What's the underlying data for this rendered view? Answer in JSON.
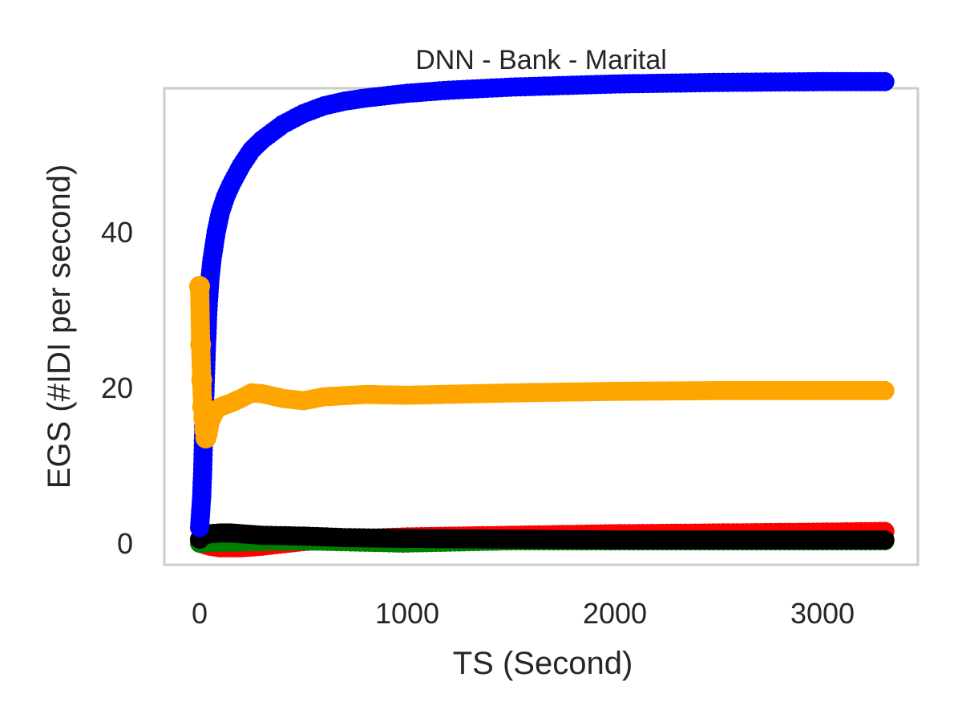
{
  "chart_data": {
    "type": "line",
    "title": "DNN - Bank - Marital",
    "xlabel": "TS (Second)",
    "ylabel": "EGS (#IDI  per second)",
    "xlim": [
      -170,
      3480
    ],
    "ylim": [
      -3.5,
      58
    ],
    "x_ticks": [
      0,
      1000,
      2000,
      3000
    ],
    "x_tick_labels": [
      "0",
      "1000",
      "2000",
      "3000"
    ],
    "y_ticks": [
      0,
      20,
      40
    ],
    "y_tick_labels": [
      "0",
      "20",
      "40"
    ],
    "grid": false,
    "legend": "none",
    "series": [
      {
        "color": "#0000ff",
        "x": [
          0,
          5,
          10,
          15,
          20,
          25,
          30,
          40,
          50,
          60,
          80,
          100,
          125,
          150,
          200,
          250,
          300,
          400,
          500,
          600,
          700,
          800,
          1000,
          1200,
          1500,
          2000,
          2500,
          3000,
          3300
        ],
        "y": [
          2,
          4,
          6,
          9.5,
          15,
          19,
          23,
          30,
          34,
          36.5,
          40,
          42.5,
          44.5,
          46,
          48.5,
          50.5,
          51.8,
          53.8,
          55.2,
          56.2,
          56.8,
          57.2,
          57.8,
          58.2,
          58.6,
          59.0,
          59.2,
          59.3,
          59.3
        ]
      },
      {
        "color": "#ffa500",
        "x": [
          0,
          5,
          10,
          15,
          20,
          25,
          30,
          40,
          50,
          75,
          100,
          150,
          200,
          250,
          300,
          400,
          500,
          600,
          800,
          1000,
          1500,
          2000,
          2500,
          3000,
          3300
        ],
        "y": [
          33,
          25.5,
          21,
          17.5,
          16,
          14.5,
          13.5,
          14,
          15.5,
          17,
          17.5,
          18,
          18.6,
          19.3,
          19.2,
          18.6,
          18.3,
          18.8,
          19.1,
          19.0,
          19.3,
          19.5,
          19.6,
          19.6,
          19.6
        ]
      },
      {
        "color": "#ff0000",
        "x": [
          0,
          50,
          100,
          200,
          300,
          500,
          700,
          1000,
          1500,
          2000,
          2500,
          3000,
          3300
        ],
        "y": [
          0,
          -0.4,
          -0.6,
          -0.6,
          -0.4,
          0.2,
          0.5,
          0.8,
          1.0,
          1.2,
          1.3,
          1.4,
          1.5
        ]
      },
      {
        "color": "#008000",
        "x": [
          0,
          100,
          500,
          980,
          1500,
          2000,
          3000,
          3300
        ],
        "y": [
          0,
          0.1,
          0.3,
          0.0,
          0.3,
          0.3,
          0.3,
          0.3
        ]
      },
      {
        "color": "#000000",
        "x": [
          0,
          20,
          50,
          100,
          150,
          200,
          300,
          500,
          700,
          1000,
          1500,
          2000,
          2500,
          3000,
          3300
        ],
        "y": [
          0.5,
          1.0,
          1.2,
          1.3,
          1.3,
          1.2,
          1.0,
          0.9,
          0.7,
          0.6,
          0.5,
          0.4,
          0.4,
          0.4,
          0.4
        ]
      }
    ]
  }
}
